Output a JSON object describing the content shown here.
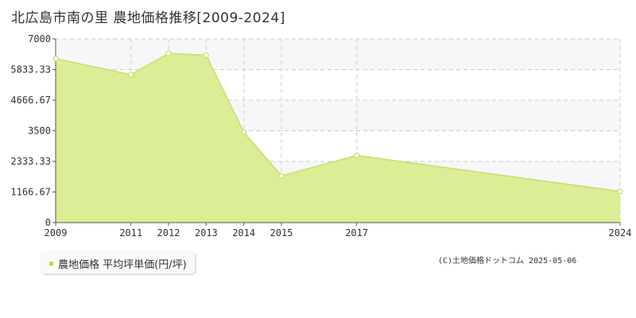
{
  "title": "北広島市南の里 農地価格推移[2009-2024]",
  "legend": {
    "label": "農地価格 平均坪単価(円/坪)"
  },
  "copyright": "(C)土地価格ドットコム 2025-05-06",
  "colors": {
    "fill": "#dbed95",
    "line": "#c4e06a",
    "band": "#f7f7f9",
    "grid": "#cccccc",
    "point": "#ffffff"
  },
  "chart_data": {
    "type": "area",
    "title": "北広島市南の里 農地価格推移[2009-2024]",
    "xlabel": "",
    "ylabel": "",
    "x": [
      "2009",
      "2011",
      "2012",
      "2013",
      "2014",
      "2015",
      "2017",
      "2024"
    ],
    "series": [
      {
        "name": "農地価格 平均坪単価(円/坪)",
        "values": [
          6250,
          5640,
          6450,
          6380,
          3450,
          1780,
          2560,
          1190
        ]
      }
    ],
    "yticks": [
      "0",
      "1166.67",
      "2333.33",
      "3500",
      "4666.67",
      "5833.33",
      "7000"
    ],
    "ylim": [
      0,
      7000
    ],
    "grid": true,
    "legend_position": "bottom-left"
  }
}
